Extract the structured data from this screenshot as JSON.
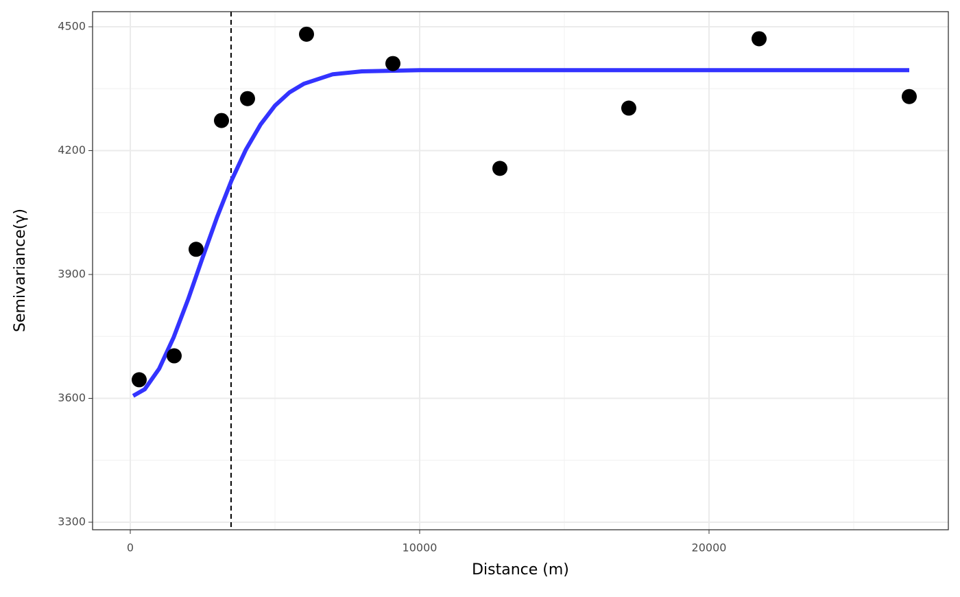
{
  "chart_data": {
    "type": "scatter",
    "xlabel": "Distance (m)",
    "ylabel": "Semivariance(γ)",
    "x": [
      308,
      1517,
      2275,
      3152,
      4052,
      6090,
      9076,
      12773,
      17227,
      21730,
      26919
    ],
    "values": [
      3645,
      3703,
      3961,
      4273,
      4326,
      4482,
      4411,
      4157,
      4303,
      4471,
      4331
    ],
    "color": "#000000",
    "curve": {
      "color": "#3333ff",
      "x": [
        100,
        500,
        1000,
        1500,
        2000,
        2500,
        3000,
        3500,
        4000,
        4500,
        5000,
        5500,
        6000,
        7000,
        8000,
        10000,
        15000,
        20000,
        26919
      ],
      "values": [
        3606,
        3622,
        3672,
        3748,
        3840,
        3941,
        4039,
        4128,
        4203,
        4263,
        4309,
        4341,
        4362,
        4385,
        4392,
        4395,
        4395,
        4395,
        4395
      ]
    },
    "vline": 3483,
    "xlim": [
      -1303,
      28270
    ],
    "ylim": [
      3281.7,
      4536.6
    ],
    "xticks": [
      0,
      10000,
      20000
    ],
    "yticks": [
      3300,
      3600,
      3900,
      4200,
      4500
    ],
    "grid": true
  }
}
